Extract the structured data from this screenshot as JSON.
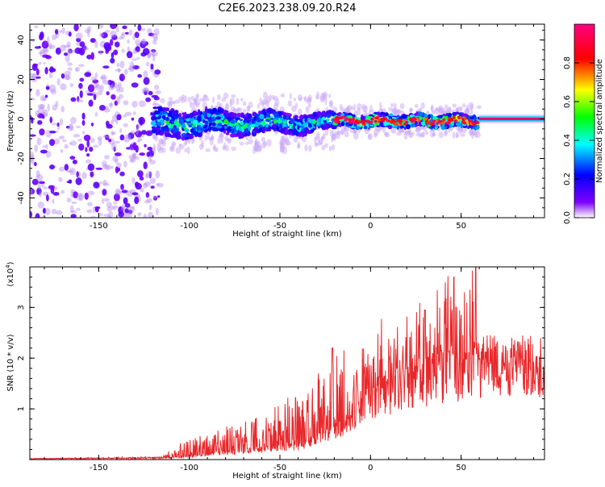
{
  "chart_data": [
    {
      "type": "heatmap",
      "title": "C2E6.2023.238.09.20.R24",
      "xlabel": "Height of straight line (km)",
      "ylabel": "Frequency (Hz)",
      "xlim": [
        -188,
        96
      ],
      "ylim": [
        -50,
        48
      ],
      "xticks": [
        -150,
        -100,
        -50,
        0,
        50
      ],
      "yticks": [
        -40,
        -20,
        0,
        20,
        40
      ],
      "colorbar": {
        "label": "Normalized spectral amplitude",
        "range": [
          0,
          1
        ],
        "ticks": [
          "0.0",
          "0.2",
          "0.4",
          "0.6",
          "0.8"
        ],
        "colors": [
          "#ffffff",
          "#7f00ff",
          "#0000ff",
          "#00ffff",
          "#00ff00",
          "#ffff00",
          "#ff0000",
          "#ff0080"
        ]
      },
      "structure": [
        {
          "x_range": [
            -188,
            -115
          ],
          "freq_spread": 48,
          "amplitude": 0.05
        },
        {
          "x_range": [
            -115,
            -20
          ],
          "freq_center": -2,
          "freq_spread": 10,
          "amplitude": 0.3
        },
        {
          "x_range": [
            -20,
            60
          ],
          "freq_center": -1,
          "freq_spread": 4,
          "amplitude": 0.6
        },
        {
          "x_range": [
            60,
            96
          ],
          "freq_center": 0,
          "freq_spread": 1.5,
          "amplitude": 1.0
        }
      ]
    },
    {
      "type": "line",
      "xlabel": "Height of straight line (km)",
      "ylabel": "SNR (10 * v/v)",
      "y_multiplier": "(x10",
      "y_multiplier_exp": "4",
      "y_multiplier_close": ")",
      "xlim": [
        -188,
        96
      ],
      "ylim": [
        0,
        3.8
      ],
      "xticks": [
        -150,
        -100,
        -50,
        0,
        50
      ],
      "yticks": [
        1,
        2,
        3
      ],
      "series": [
        {
          "color": "#e8282b",
          "envelope": [
            {
              "x": -188,
              "base": 0.02,
              "spike": 0.0
            },
            {
              "x": -115,
              "base": 0.03,
              "spike": 0.03
            },
            {
              "x": -105,
              "base": 0.05,
              "spike": 0.3
            },
            {
              "x": -80,
              "base": 0.15,
              "spike": 0.5
            },
            {
              "x": -60,
              "base": 0.22,
              "spike": 0.7
            },
            {
              "x": -40,
              "base": 0.3,
              "spike": 1.0
            },
            {
              "x": -20,
              "base": 0.6,
              "spike": 1.4
            },
            {
              "x": 0,
              "base": 1.3,
              "spike": 1.1
            },
            {
              "x": 20,
              "base": 1.6,
              "spike": 1.2
            },
            {
              "x": 40,
              "base": 1.8,
              "spike": 1.6
            },
            {
              "x": 58,
              "base": 1.9,
              "spike": 1.7
            },
            {
              "x": 62,
              "base": 2.05,
              "spike": 0.05
            },
            {
              "x": 96,
              "base": 2.05,
              "spike": 0.05
            }
          ],
          "peaks": [
            {
              "x": -21,
              "y": 2.2
            },
            {
              "x": 30,
              "y": 2.95
            },
            {
              "x": 46,
              "y": 3.6
            },
            {
              "x": 58,
              "y": 3.8
            }
          ]
        }
      ]
    }
  ]
}
